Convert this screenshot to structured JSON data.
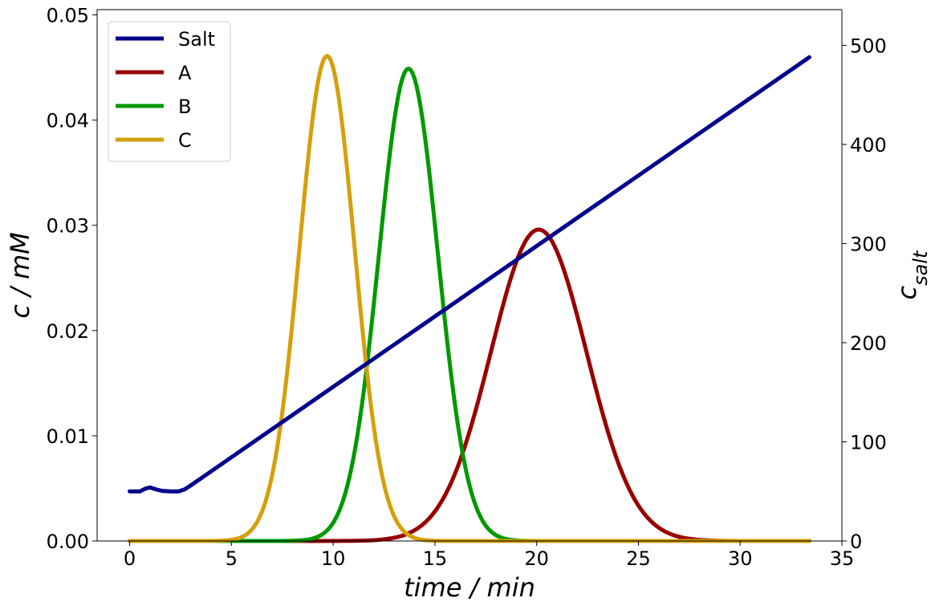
{
  "chart_data": {
    "type": "line",
    "xlabel": "time / min",
    "ylabel": "c / mM",
    "y2label": "c_salt",
    "xlim": [
      -1.6,
      35
    ],
    "ylim": [
      0,
      0.0505
    ],
    "y2lim": [
      0,
      536
    ],
    "xticks": [
      "0",
      "5",
      "10",
      "15",
      "20",
      "25",
      "30",
      "35"
    ],
    "xtick_values": [
      0,
      5,
      10,
      15,
      20,
      25,
      30,
      35
    ],
    "yticks": [
      "0.00",
      "0.01",
      "0.02",
      "0.03",
      "0.04",
      "0.05"
    ],
    "ytick_values": [
      0,
      0.01,
      0.02,
      0.03,
      0.04,
      0.05
    ],
    "y2ticks": [
      "0",
      "100",
      "200",
      "300",
      "400",
      "500"
    ],
    "y2tick_values": [
      0,
      100,
      200,
      300,
      400,
      500
    ],
    "grid": false,
    "legend_position": "top-left",
    "series": [
      {
        "name": "Salt",
        "color": "#00008b",
        "axis": "right",
        "points": [
          [
            0,
            50
          ],
          [
            0.5,
            50
          ],
          [
            0.8,
            53
          ],
          [
            1.0,
            54
          ],
          [
            1.3,
            52
          ],
          [
            1.6,
            50.5
          ],
          [
            2.0,
            50
          ],
          [
            2.4,
            50
          ],
          [
            2.7,
            52
          ],
          [
            3.0,
            56
          ],
          [
            33.4,
            488
          ]
        ]
      },
      {
        "name": "A",
        "color": "#990000",
        "axis": "left",
        "peak": {
          "center": 20.1,
          "height": 0.0296,
          "sigma": 2.35
        },
        "range": [
          0,
          33.4
        ]
      },
      {
        "name": "B",
        "color": "#009900",
        "axis": "left",
        "peak": {
          "center": 13.7,
          "height": 0.0449,
          "sigma": 1.45
        },
        "range": [
          0,
          33.4
        ]
      },
      {
        "name": "C",
        "color": "#d4a00a",
        "axis": "left",
        "peak": {
          "center": 9.7,
          "height": 0.0461,
          "sigma": 1.35
        },
        "range": [
          0,
          33.4
        ]
      }
    ]
  }
}
